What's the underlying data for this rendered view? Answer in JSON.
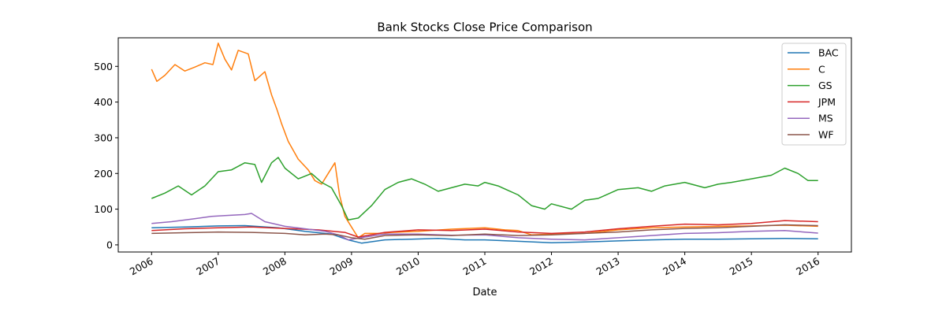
{
  "chart_data": {
    "type": "line",
    "title": "Bank Stocks Close Price Comparison",
    "xlabel": "Date",
    "ylabel": "",
    "x_ticks": [
      "2006",
      "2007",
      "2008",
      "2009",
      "2010",
      "2011",
      "2012",
      "2013",
      "2014",
      "2015",
      "2016"
    ],
    "y_ticks": [
      0,
      100,
      200,
      300,
      400,
      500
    ],
    "xlim": [
      2005.5,
      2016.5
    ],
    "ylim": [
      -20,
      580
    ],
    "grid": false,
    "legend": "top-right",
    "series": [
      {
        "name": "BAC",
        "color": "#1f77b4",
        "x": [
          2006.0,
          2006.5,
          2007.0,
          2007.4,
          2007.9,
          2008.3,
          2008.7,
          2008.95,
          2009.15,
          2009.5,
          2009.9,
          2010.3,
          2010.7,
          2011.0,
          2011.5,
          2012.0,
          2012.5,
          2013.0,
          2013.5,
          2014.0,
          2014.5,
          2015.0,
          2015.5,
          2016.0
        ],
        "values": [
          48,
          50,
          53,
          54,
          48,
          38,
          30,
          14,
          5,
          14,
          16,
          18,
          14,
          14,
          10,
          6,
          8,
          11,
          14,
          16,
          16,
          17,
          18,
          17
        ]
      },
      {
        "name": "C",
        "color": "#ff7f0e",
        "x": [
          2006.0,
          2006.08,
          2006.2,
          2006.35,
          2006.5,
          2006.65,
          2006.8,
          2006.92,
          2007.0,
          2007.1,
          2007.2,
          2007.3,
          2007.45,
          2007.55,
          2007.7,
          2007.8,
          2007.88,
          2007.95,
          2008.05,
          2008.2,
          2008.35,
          2008.45,
          2008.55,
          2008.65,
          2008.75,
          2008.82,
          2008.9,
          2009.0,
          2009.1,
          2009.2,
          2009.4,
          2009.6,
          2010.0,
          2010.5,
          2011.0,
          2011.3,
          2011.5,
          2011.7,
          2012.0,
          2012.5,
          2013.0,
          2013.5,
          2014.0,
          2014.5,
          2015.0,
          2015.5,
          2016.0
        ],
        "values": [
          492,
          458,
          475,
          505,
          487,
          498,
          510,
          505,
          565,
          520,
          490,
          545,
          535,
          460,
          485,
          420,
          380,
          340,
          290,
          240,
          210,
          180,
          170,
          200,
          230,
          140,
          80,
          50,
          20,
          32,
          32,
          35,
          38,
          44,
          48,
          42,
          40,
          28,
          30,
          32,
          42,
          48,
          50,
          52,
          53,
          55,
          52
        ]
      },
      {
        "name": "GS",
        "color": "#2ca02c",
        "x": [
          2006.0,
          2006.2,
          2006.4,
          2006.6,
          2006.8,
          2007.0,
          2007.2,
          2007.4,
          2007.55,
          2007.65,
          2007.8,
          2007.9,
          2008.0,
          2008.2,
          2008.4,
          2008.55,
          2008.7,
          2008.85,
          2008.95,
          2009.1,
          2009.3,
          2009.5,
          2009.7,
          2009.9,
          2010.1,
          2010.3,
          2010.5,
          2010.7,
          2010.9,
          2011.0,
          2011.2,
          2011.5,
          2011.7,
          2011.9,
          2012.0,
          2012.3,
          2012.5,
          2012.7,
          2013.0,
          2013.3,
          2013.5,
          2013.7,
          2014.0,
          2014.3,
          2014.5,
          2014.7,
          2015.0,
          2015.3,
          2015.5,
          2015.7,
          2015.85,
          2016.0
        ],
        "values": [
          130,
          145,
          165,
          140,
          165,
          205,
          210,
          230,
          225,
          175,
          230,
          245,
          215,
          185,
          200,
          175,
          160,
          110,
          70,
          75,
          110,
          155,
          175,
          185,
          170,
          150,
          160,
          170,
          165,
          175,
          165,
          140,
          110,
          100,
          115,
          100,
          125,
          130,
          155,
          160,
          150,
          165,
          175,
          160,
          170,
          175,
          185,
          195,
          215,
          200,
          180,
          180
        ]
      },
      {
        "name": "JPM",
        "color": "#d62728",
        "x": [
          2006.0,
          2006.5,
          2007.0,
          2007.5,
          2008.0,
          2008.5,
          2008.9,
          2009.1,
          2009.5,
          2010.0,
          2010.5,
          2011.0,
          2011.5,
          2012.0,
          2012.5,
          2013.0,
          2013.5,
          2014.0,
          2014.5,
          2015.0,
          2015.5,
          2016.0
        ],
        "values": [
          40,
          45,
          48,
          50,
          46,
          42,
          35,
          22,
          35,
          42,
          40,
          44,
          36,
          32,
          36,
          45,
          52,
          58,
          56,
          60,
          68,
          65
        ]
      },
      {
        "name": "MS",
        "color": "#9467bd",
        "x": [
          2006.0,
          2006.3,
          2006.6,
          2006.9,
          2007.1,
          2007.4,
          2007.5,
          2007.7,
          2008.0,
          2008.3,
          2008.6,
          2008.8,
          2008.95,
          2009.2,
          2009.5,
          2010.0,
          2010.5,
          2011.0,
          2011.5,
          2012.0,
          2012.5,
          2013.0,
          2013.5,
          2014.0,
          2014.5,
          2015.0,
          2015.5,
          2016.0
        ],
        "values": [
          60,
          65,
          72,
          80,
          82,
          85,
          88,
          65,
          52,
          45,
          38,
          28,
          14,
          22,
          30,
          30,
          27,
          28,
          20,
          16,
          14,
          20,
          26,
          32,
          34,
          38,
          40,
          33
        ]
      },
      {
        "name": "WF",
        "color": "#8c564b",
        "x": [
          2006.0,
          2006.5,
          2007.0,
          2007.5,
          2008.0,
          2008.3,
          2008.6,
          2008.8,
          2009.0,
          2009.2,
          2009.5,
          2010.0,
          2010.5,
          2011.0,
          2011.5,
          2012.0,
          2012.5,
          2013.0,
          2013.5,
          2014.0,
          2014.5,
          2015.0,
          2015.5,
          2016.0
        ],
        "values": [
          32,
          34,
          36,
          35,
          32,
          28,
          30,
          28,
          20,
          16,
          26,
          28,
          26,
          30,
          26,
          28,
          32,
          36,
          42,
          46,
          48,
          52,
          56,
          54
        ]
      }
    ]
  }
}
